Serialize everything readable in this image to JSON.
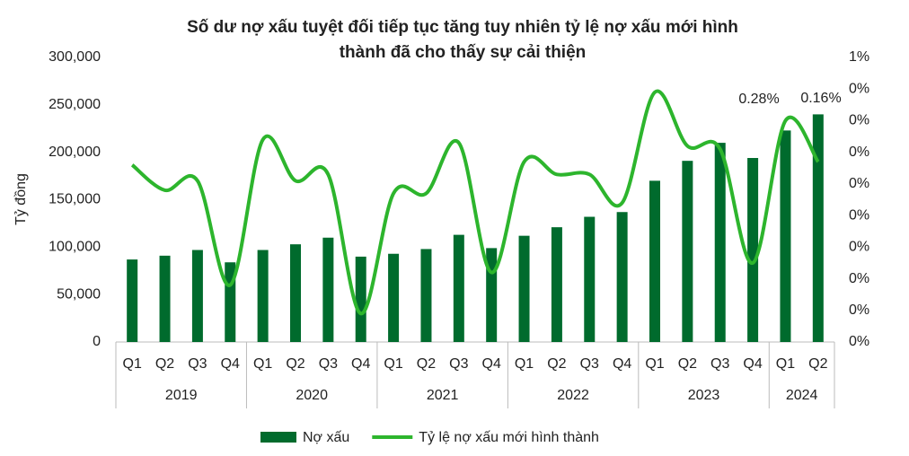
{
  "chart_data": {
    "type": "bar_line",
    "title": [
      "Số dư nợ xấu tuyệt đối tiếp tục tăng tuy nhiên tỷ lệ nợ xấu mới hình",
      "thành đã cho thấy sự cải thiện"
    ],
    "ylabel": "Tỷ đồng",
    "categories": [
      "Q1",
      "Q2",
      "Q3",
      "Q4",
      "Q1",
      "Q2",
      "Q3",
      "Q4",
      "Q1",
      "Q2",
      "Q3",
      "Q4",
      "Q1",
      "Q2",
      "Q3",
      "Q4",
      "Q1",
      "Q2",
      "Q3",
      "Q4",
      "Q1",
      "Q2"
    ],
    "groups": [
      {
        "label": "2019",
        "size": 4
      },
      {
        "label": "2020",
        "size": 4
      },
      {
        "label": "2021",
        "size": 4
      },
      {
        "label": "2022",
        "size": 4
      },
      {
        "label": "2023",
        "size": 4
      },
      {
        "label": "2024",
        "size": 2
      }
    ],
    "series": [
      {
        "name": "Nợ xấu",
        "type": "bar",
        "color": "#006b2d",
        "values": [
          87000,
          91000,
          97000,
          84000,
          97000,
          103000,
          110000,
          90000,
          93000,
          98000,
          113000,
          99000,
          112000,
          121000,
          132000,
          137000,
          170000,
          191000,
          210000,
          194000,
          223000,
          240000
        ]
      },
      {
        "name": "Tỷ lệ nợ xấu mới hình thành",
        "type": "line",
        "axis": "y2",
        "color": "#2db52d",
        "values": [
          0.56,
          0.48,
          0.51,
          0.18,
          0.64,
          0.51,
          0.53,
          0.09,
          0.47,
          0.47,
          0.63,
          0.22,
          0.57,
          0.53,
          0.53,
          0.44,
          0.79,
          0.62,
          0.61,
          0.25,
          0.7,
          0.57
        ]
      }
    ],
    "annotations": [
      "0.28%",
      "0.16%"
    ],
    "ylim": [
      0,
      300000
    ],
    "yticks": [
      0,
      {
        "value": 50000,
        "label": "50,000"
      },
      {
        "value": 100000,
        "label": "100,000"
      },
      {
        "value": 150000,
        "label": "150,000"
      },
      {
        "value": 200000,
        "label": "200,000"
      },
      {
        "value": 250000,
        "label": "250,000"
      },
      {
        "value": 300000,
        "label": "300,000"
      }
    ],
    "y2lim": [
      0,
      0.9
    ],
    "y2ticks": [
      {
        "value": 0,
        "label": "0%"
      },
      {
        "value": 0.1,
        "label": "0%"
      },
      {
        "value": 0.2,
        "label": "0%"
      },
      {
        "value": 0.3,
        "label": "0%"
      },
      {
        "value": 0.4,
        "label": "0%"
      },
      {
        "value": 0.5,
        "label": "0%"
      },
      {
        "value": 0.6,
        "label": "0%"
      },
      {
        "value": 0.7,
        "label": "0%"
      },
      {
        "value": 0.8,
        "label": "0%"
      },
      {
        "value": 0.9,
        "label": "1%"
      }
    ],
    "legend": "bottom"
  }
}
